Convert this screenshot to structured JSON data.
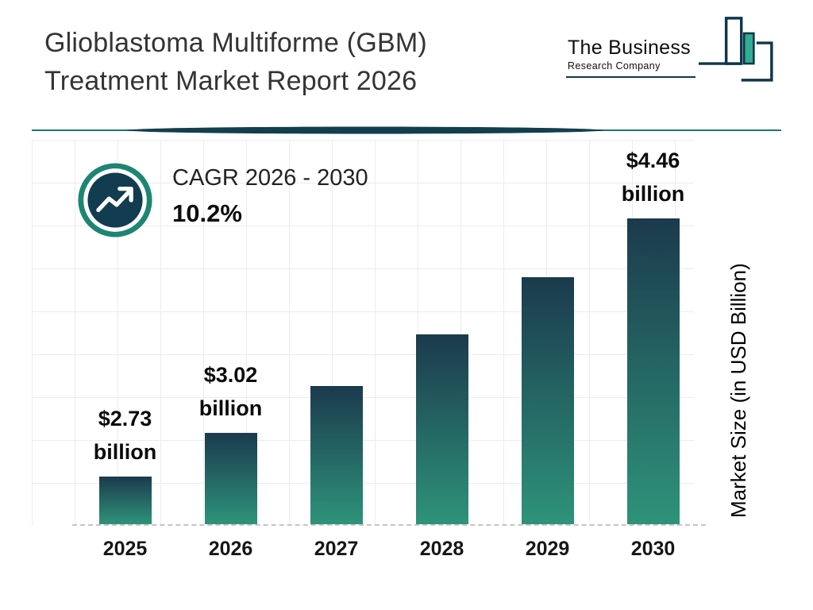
{
  "header": {
    "title_line1": "Glioblastoma Multiforme (GBM)",
    "title_line2": "Treatment Market Report 2026",
    "logo": {
      "line1": "The Business",
      "line2": "Research Company"
    }
  },
  "cagr": {
    "label": "CAGR 2026 - 2030",
    "value": "10.2%"
  },
  "chart_data": {
    "type": "bar",
    "categories": [
      "2025",
      "2026",
      "2027",
      "2028",
      "2029",
      "2030"
    ],
    "values": [
      2.73,
      3.02,
      3.33,
      3.67,
      4.05,
      4.46
    ],
    "bar_labels": [
      {
        "value": "$2.73",
        "unit": "billion"
      },
      {
        "value": "$3.02",
        "unit": "billion"
      },
      null,
      null,
      null,
      {
        "value": "$4.46",
        "unit": "billion"
      }
    ],
    "title": "",
    "xlabel": "",
    "ylabel": "Market Size (in USD Billion)",
    "grid": true,
    "legend": "none",
    "bar_gradient": [
      "#1b3a4d",
      "#2e937a"
    ]
  },
  "colors": {
    "accent_teal": "#1d8573",
    "dark_navy": "#10374a",
    "logo_teal": "#2fae94",
    "grid_line": "#ececec"
  }
}
